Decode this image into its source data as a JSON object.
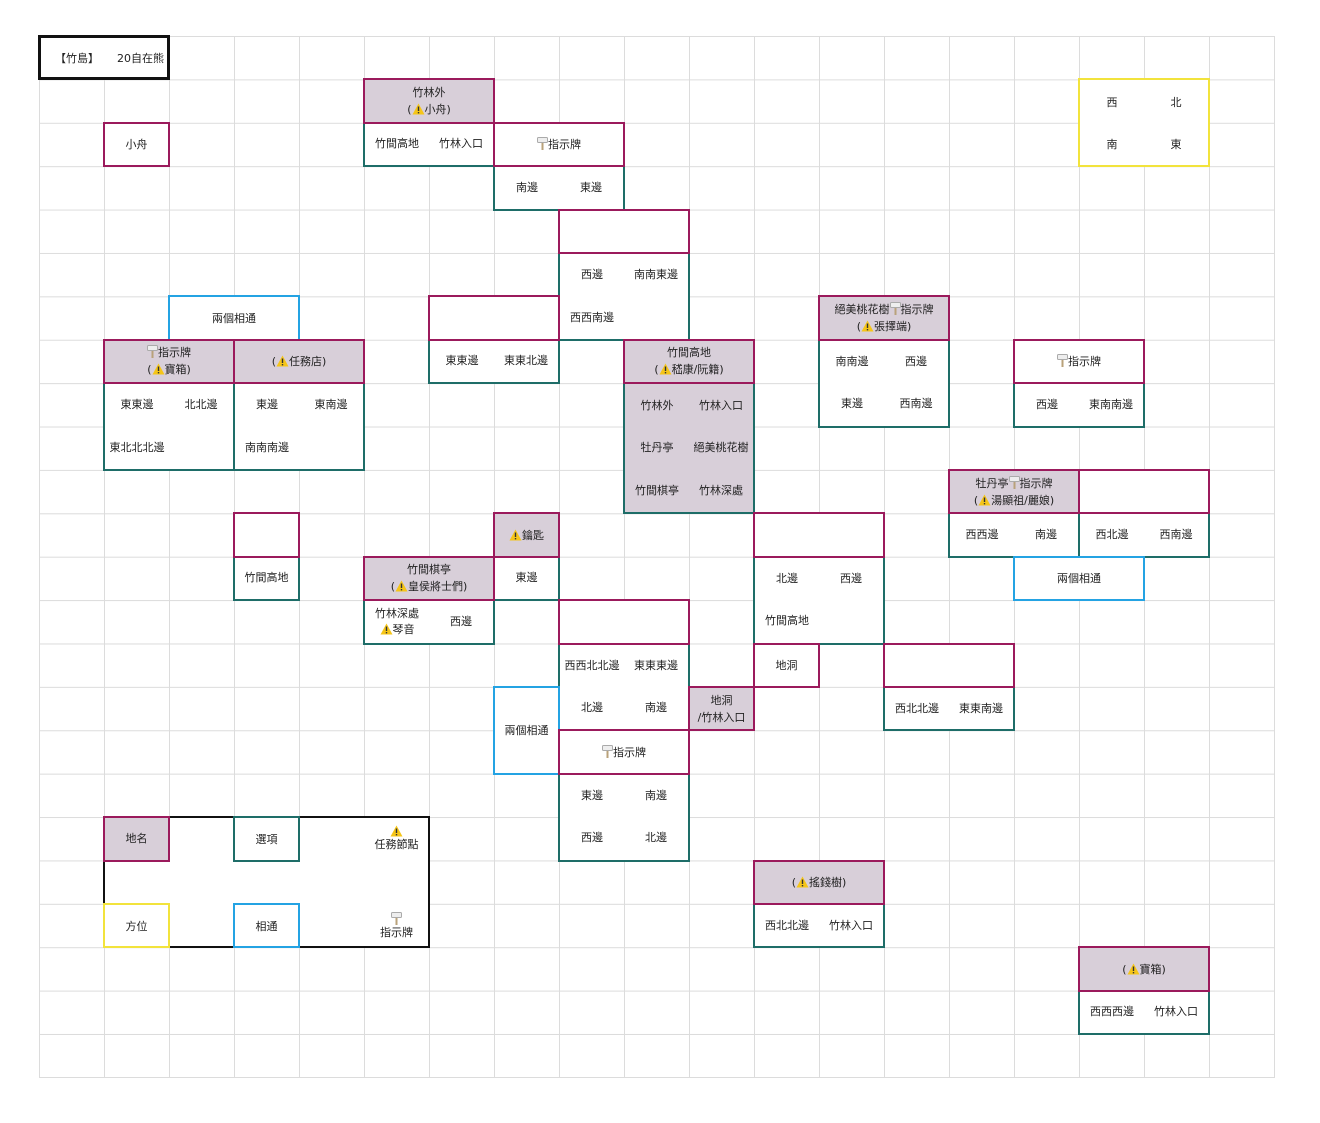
{
  "title": {
    "region": "【竹島】",
    "author": "20自在熊"
  },
  "compass": [
    "西",
    "北",
    "南",
    "東"
  ],
  "colors": {
    "location": "#9b1a5c",
    "location_fill": "#d8cfd9",
    "option": "#1e6d68",
    "connected": "#24a3e3",
    "direction": "#f2e33c",
    "quest_icon": "#f5c518"
  },
  "nodes": [
    {
      "name": "小舟",
      "options": []
    },
    {
      "name": "竹林外",
      "quest": "小舟",
      "options": [
        "竹間高地",
        "竹林入口"
      ]
    },
    {
      "sign": "指示牌",
      "options": [
        "南邊",
        "東邊"
      ]
    },
    {
      "options": [
        "西邊",
        "南南東邊",
        "西西南邊",
        ""
      ]
    },
    {
      "options": [
        "東東邊",
        "東東北邊"
      ]
    },
    {
      "sign": "指示牌",
      "quest": "寶箱",
      "options": [
        "東東邊",
        "北北邊",
        "東北北北邊",
        ""
      ]
    },
    {
      "quest": "任務店",
      "options": [
        "東邊",
        "東南邊",
        "南南南邊",
        ""
      ]
    },
    {
      "name": "竹間高地",
      "quest": "嵇康/阮籍",
      "options": [
        "竹林外",
        "竹林入口",
        "牡丹亭",
        "絕美桃花樹",
        "竹間棋亭",
        "竹林深處"
      ]
    },
    {
      "name": "絕美桃花樹",
      "sign": "指示牌",
      "quest": "張擇端",
      "options": [
        "南南邊",
        "西邊",
        "東邊",
        "西南邊"
      ]
    },
    {
      "sign": "指示牌",
      "options": [
        "西邊",
        "東南南邊"
      ]
    },
    {
      "name": "牡丹亭",
      "sign": "指示牌",
      "quest": "湯顯祖/麗娘",
      "options": [
        "西西邊",
        "南邊"
      ]
    },
    {
      "options": [
        "西北邊",
        "西南邊"
      ]
    },
    {
      "options": [
        "竹間高地"
      ]
    },
    {
      "quest": "鑰匙",
      "options": [
        "東邊"
      ]
    },
    {
      "name": "竹間棋亭",
      "quest": "皇侯將士們",
      "options": [
        "竹林深處",
        "西邊"
      ],
      "option_quest": "琴音"
    },
    {
      "options": [
        "北邊",
        "西邊",
        "竹間高地",
        ""
      ]
    },
    {
      "options": [
        "西西北北邊",
        "東東東邊",
        "北邊",
        "南邊"
      ]
    },
    {
      "name": "地洞",
      "options": []
    },
    {
      "name": "地洞\n/竹林入口",
      "options": []
    },
    {
      "sign": "指示牌",
      "options": [
        "東邊",
        "南邊",
        "西邊",
        "北邊"
      ]
    },
    {
      "options": [
        "西北北邊",
        "東東南邊"
      ]
    },
    {
      "quest": "搖錢樹",
      "options": [
        "西北北邊",
        "竹林入口"
      ]
    },
    {
      "quest": "寶箱",
      "options": [
        "西西西邊",
        "竹林入口"
      ]
    }
  ],
  "links": [
    "兩個相通",
    "兩個相通",
    "兩個相通"
  ],
  "legend": {
    "location": "地名",
    "option": "選項",
    "quest": "任務節點",
    "direction": "方位",
    "connected": "相通",
    "sign": "指示牌"
  }
}
